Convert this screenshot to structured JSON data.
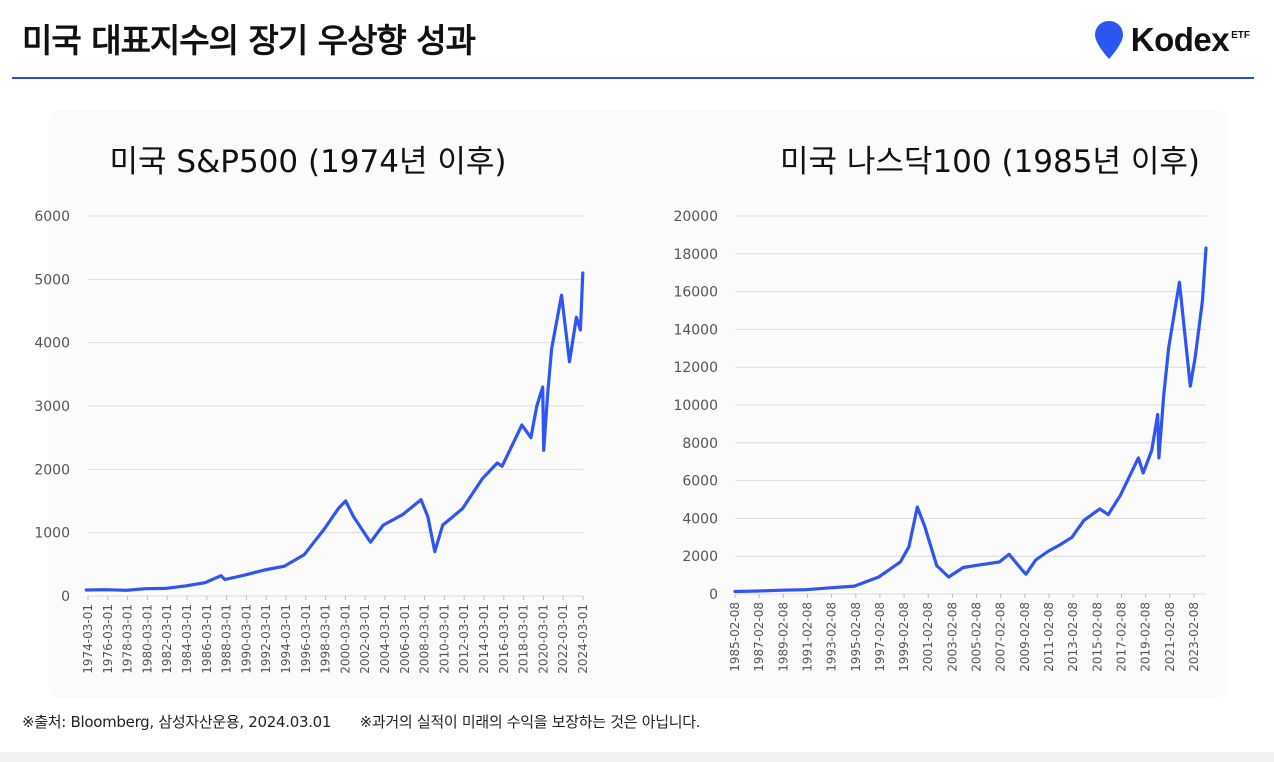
{
  "header": {
    "title": "미국 대표지수의 장기 우상향 성과",
    "brand_name": "Kodex",
    "brand_sub": "ETF",
    "brand_color": "#2b57f0"
  },
  "footer": {
    "source": "※출처: Bloomberg, 삼성자산운용, 2024.03.01",
    "disclaimer": "※과거의 실적이 미래의 수익을 보장하는 것은 아닙니다."
  },
  "chart_data": [
    {
      "type": "line",
      "title": "미국 S&P500 (1974년 이후)",
      "color": "#2f55f2",
      "ylim": [
        0,
        6000
      ],
      "yticks": [
        "0",
        "1000",
        "2000",
        "3000",
        "4000",
        "5000",
        "6000"
      ],
      "xticks": [
        "1974-03-01",
        "1976-03-01",
        "1978-03-01",
        "1980-03-01",
        "1982-03-01",
        "1984-03-01",
        "1986-03-01",
        "1988-03-01",
        "1990-03-01",
        "1992-03-01",
        "1994-03-01",
        "1996-03-01",
        "1998-03-01",
        "2000-03-01",
        "2002-03-01",
        "2004-03-01",
        "2006-03-01",
        "2008-03-01",
        "2010-03-01",
        "2012-03-01",
        "2014-03-01",
        "2016-03-01",
        "2018-03-01",
        "2020-03-01",
        "2022-03-01",
        "2024-03-01"
      ],
      "grid": true,
      "series": [
        {
          "x": [
            1974,
            1976,
            1978,
            1980,
            1982,
            1984,
            1986,
            1987.6,
            1988,
            1990,
            1992,
            1994,
            1996,
            1998,
            1999.5,
            2000.2,
            2001,
            2002.7,
            2004,
            2006,
            2007.8,
            2008.5,
            2009.2,
            2010,
            2012,
            2014,
            2015.5,
            2016,
            2018,
            2018.9,
            2019.5,
            2020.1,
            2020.2,
            2020.6,
            2021,
            2022,
            2022.8,
            2023.5,
            2023.9,
            2024.15
          ],
          "y": [
            95,
            100,
            90,
            115,
            120,
            160,
            210,
            320,
            260,
            330,
            410,
            470,
            650,
            1050,
            1390,
            1500,
            1250,
            850,
            1120,
            1290,
            1520,
            1250,
            700,
            1120,
            1380,
            1850,
            2100,
            2050,
            2700,
            2500,
            3000,
            3300,
            2300,
            3200,
            3900,
            4750,
            3700,
            4400,
            4200,
            5100
          ]
        }
      ]
    },
    {
      "type": "line",
      "title": "미국 나스닥100 (1985년 이후)",
      "color": "#2f55f2",
      "ylim": [
        0,
        20000
      ],
      "yticks": [
        "0",
        "2000",
        "4000",
        "6000",
        "8000",
        "10000",
        "12000",
        "14000",
        "16000",
        "18000",
        "20000"
      ],
      "xticks": [
        "1985-02-08",
        "1987-02-08",
        "1989-02-08",
        "1991-02-08",
        "1993-02-08",
        "1995-02-08",
        "1997-02-08",
        "1999-02-08",
        "2001-02-08",
        "2003-02-08",
        "2005-02-08",
        "2007-02-08",
        "2009-02-08",
        "2011-02-08",
        "2013-02-08",
        "2015-02-08",
        "2017-02-08",
        "2019-02-08",
        "2021-02-08",
        "2023-02-08"
      ],
      "grid": true,
      "series": [
        {
          "x": [
            1985.1,
            1987,
            1989,
            1991,
            1993,
            1995,
            1997,
            1998.8,
            1999.5,
            2000.2,
            2000.8,
            2001.8,
            2002.8,
            2004,
            2005,
            2007,
            2007.8,
            2008.9,
            2009.2,
            2010,
            2011,
            2012,
            2013,
            2014,
            2015.3,
            2016,
            2017,
            2018.5,
            2018.9,
            2019.6,
            2020.1,
            2020.2,
            2020.6,
            2021,
            2021.9,
            2022.8,
            2023.2,
            2023.8,
            2024.1
          ],
          "y": [
            130,
            160,
            200,
            230,
            330,
            420,
            900,
            1700,
            2500,
            4600,
            3600,
            1500,
            900,
            1400,
            1500,
            1700,
            2100,
            1250,
            1050,
            1800,
            2250,
            2600,
            3000,
            3900,
            4500,
            4200,
            5200,
            7200,
            6400,
            7600,
            9500,
            7200,
            10500,
            13000,
            16500,
            11000,
            12500,
            15500,
            18300
          ]
        }
      ]
    }
  ]
}
